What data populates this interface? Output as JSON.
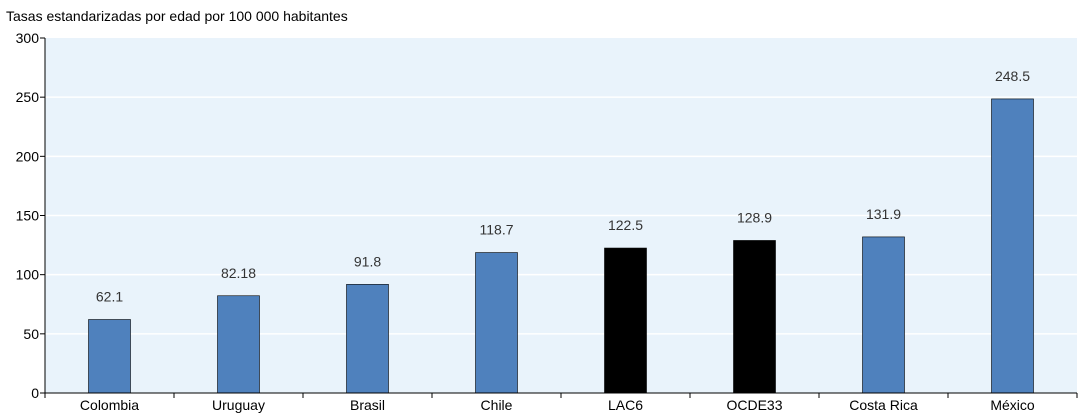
{
  "chart_data": {
    "type": "bar",
    "ylabel": "Tasas estandarizadas por edad por 100 000 habitantes",
    "categories": [
      "Colombia",
      "Uruguay",
      "Brasil",
      "Chile",
      "LAC6",
      "OCDE33",
      "Costa Rica",
      "México"
    ],
    "values": [
      62.1,
      82.18,
      91.8,
      118.7,
      122.5,
      128.9,
      131.9,
      248.5
    ],
    "data_labels": [
      "62.1",
      "82.18",
      "91.8",
      "118.7",
      "122.5",
      "128.9",
      "131.9",
      "248.5"
    ],
    "highlight": [
      false,
      false,
      false,
      false,
      true,
      true,
      false,
      false
    ],
    "ylim": [
      0,
      300
    ],
    "yticks": [
      0,
      50,
      100,
      150,
      200,
      250,
      300
    ],
    "ytick_labels": [
      "0",
      "50",
      "100",
      "150",
      "200",
      "250",
      "300"
    ],
    "grid": true,
    "legend": "none",
    "colors": {
      "bar": "#4f81bd",
      "bar_highlight": "#000000",
      "plot_background": "#e9f3fb",
      "gridline": "#ffffff",
      "axis": "#000000"
    }
  }
}
